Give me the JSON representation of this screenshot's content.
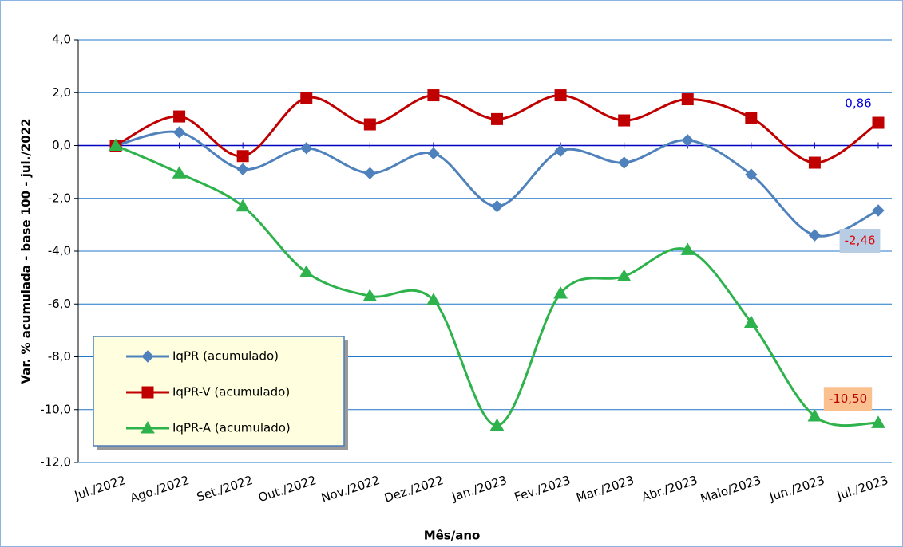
{
  "chart_data": {
    "type": "line",
    "x_label": "Mês/ano",
    "y_label": "Var. % acumulada - base 100 - jul./2022",
    "categories": [
      "Jul./2022",
      "Ago./2022",
      "Set./2022",
      "Out./2022",
      "Nov./2022",
      "Dez./2022",
      "Jan./2023",
      "Fev./2023",
      "Mar./2023",
      "Abr./2023",
      "Maio/2023",
      "Jun./2023",
      "Jul./2023"
    ],
    "series": [
      {
        "name": "IqPR (acumulado)",
        "color": "#4f81bd",
        "marker": "diamond",
        "values": [
          0,
          0.5,
          -0.9,
          -0.1,
          -1.05,
          -0.3,
          -2.3,
          -0.2,
          -0.65,
          0.2,
          -1.1,
          -3.4,
          -2.46
        ],
        "value_labels": [
          null,
          null,
          null,
          null,
          null,
          null,
          null,
          null,
          null,
          null,
          null,
          null,
          "-2,46"
        ]
      },
      {
        "name": "IqPR-V  (acumulado)",
        "color": "#c00000",
        "marker": "square",
        "values": [
          0,
          1.1,
          -0.4,
          1.8,
          0.8,
          1.9,
          1.0,
          1.9,
          0.95,
          1.75,
          1.05,
          -0.65,
          0.86
        ],
        "value_labels": [
          null,
          null,
          null,
          null,
          null,
          null,
          null,
          null,
          null,
          null,
          null,
          null,
          "0,86"
        ]
      },
      {
        "name": "IqPR-A  (acumulado)",
        "color": "#2db24c",
        "marker": "triangle",
        "values": [
          0,
          -1.05,
          -2.3,
          -4.8,
          -5.7,
          -5.85,
          -10.6,
          -5.6,
          -4.95,
          -3.95,
          -6.7,
          -10.25,
          -10.5
        ],
        "value_labels": [
          null,
          null,
          null,
          null,
          null,
          null,
          null,
          null,
          null,
          null,
          null,
          null,
          "-10,50"
        ]
      }
    ],
    "ylim": [
      -12,
      4
    ],
    "yticks": [
      {
        "value": -12,
        "label": "-12,0"
      },
      {
        "value": -10,
        "label": "-10,0"
      },
      {
        "value": -8,
        "label": "-8,0"
      },
      {
        "value": -6,
        "label": "-6,0"
      },
      {
        "value": -4,
        "label": "-4,0"
      },
      {
        "value": -2,
        "label": "-2,0"
      },
      {
        "value": 0,
        "label": "0,0"
      },
      {
        "value": 2,
        "label": "2,0"
      },
      {
        "value": 4,
        "label": "4,0"
      }
    ],
    "grid": true,
    "smooth": true,
    "legend": "lower left"
  }
}
